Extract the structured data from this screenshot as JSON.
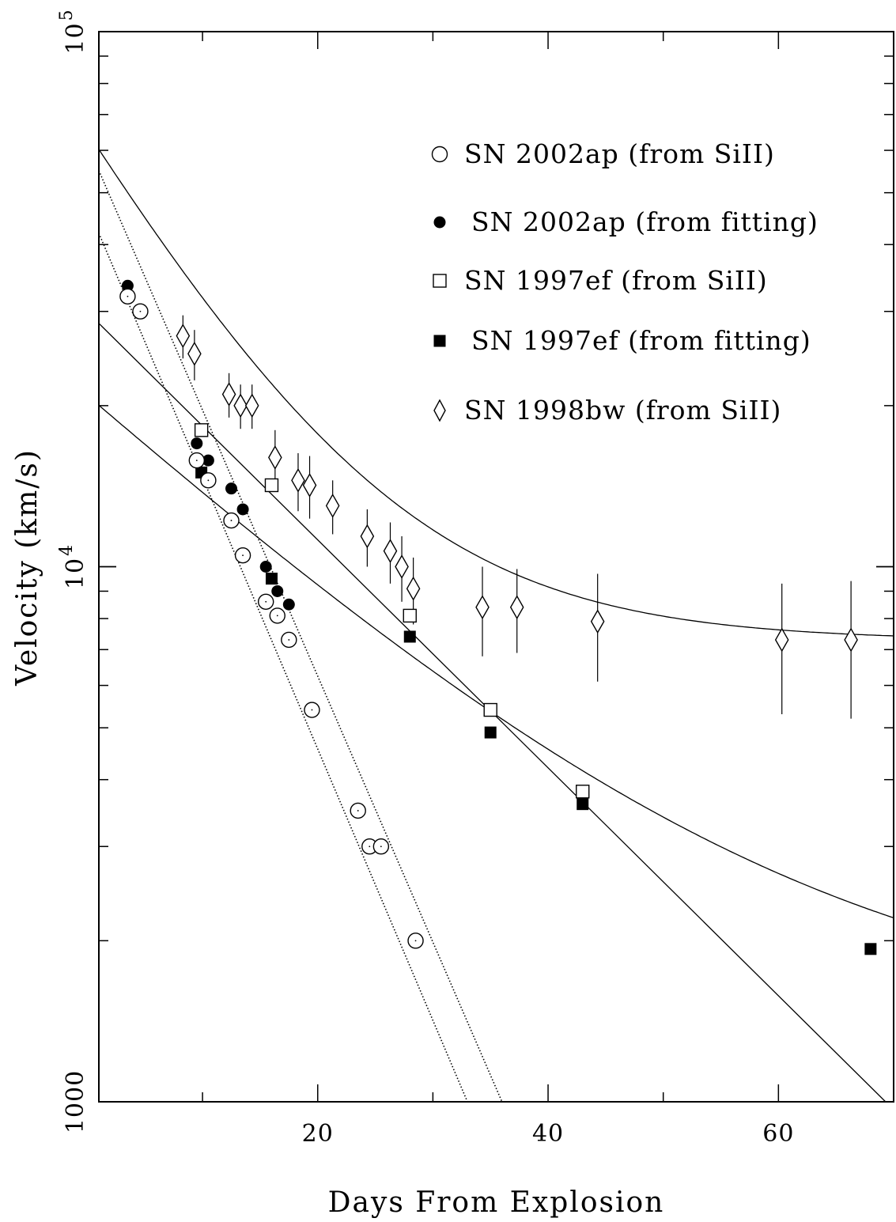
{
  "chart_data": {
    "type": "scatter",
    "title": "",
    "xlabel": "Days From Explosion",
    "ylabel": "Velocity (km/s)",
    "yscale": "log",
    "xlim": [
      1,
      70
    ],
    "ylim": [
      1000,
      100000
    ],
    "x_ticks": [
      20,
      40,
      60
    ],
    "x_tick_labels": [
      "20",
      "40",
      "60"
    ],
    "y_tick_labels": [
      {
        "value": 1000,
        "base": "1000",
        "exp": ""
      },
      {
        "value": 10000,
        "base": "10",
        "exp": "4"
      },
      {
        "value": 100000,
        "base": "10",
        "exp": "5"
      }
    ],
    "legend_position": "top-right",
    "series": [
      {
        "name": "SN 2002ap (from SiII)",
        "marker": "open-circle",
        "points": [
          [
            3.5,
            32000
          ],
          [
            4.6,
            30000
          ],
          [
            9.5,
            15800
          ],
          [
            10.5,
            14500
          ],
          [
            12.5,
            12200
          ],
          [
            13.5,
            10500
          ],
          [
            15.5,
            8600
          ],
          [
            16.5,
            8100
          ],
          [
            17.5,
            7300
          ],
          [
            19.5,
            5400
          ],
          [
            23.5,
            3500
          ],
          [
            24.5,
            3000
          ],
          [
            25.5,
            3000
          ],
          [
            28.5,
            2000
          ]
        ]
      },
      {
        "name": "SN 2002ap (from fitting)",
        "marker": "filled-circle",
        "points": [
          [
            3.5,
            33500
          ],
          [
            4.5,
            30000
          ],
          [
            9.5,
            17000
          ],
          [
            10.5,
            15800
          ],
          [
            12.5,
            14000
          ],
          [
            13.5,
            12800
          ],
          [
            15.5,
            10000
          ],
          [
            16.5,
            9000
          ],
          [
            17.5,
            8500
          ]
        ]
      },
      {
        "name": "SN 1997ef (from SiII)",
        "marker": "open-square",
        "points": [
          [
            9.9,
            18000
          ],
          [
            16,
            14200
          ],
          [
            28,
            8100
          ],
          [
            35,
            5400
          ],
          [
            43,
            3800
          ]
        ]
      },
      {
        "name": "SN 1997ef (from fitting)",
        "marker": "filled-square",
        "points": [
          [
            9.9,
            15000
          ],
          [
            16,
            9500
          ],
          [
            28,
            7400
          ],
          [
            35,
            4900
          ],
          [
            43,
            3600
          ],
          [
            68,
            1930
          ]
        ]
      },
      {
        "name": "SN 1998bw (from SiII)",
        "marker": "open-diamond",
        "points": [
          [
            8.3,
            27000,
            2500
          ],
          [
            9.3,
            25000,
            2700
          ],
          [
            12.3,
            21000,
            2000
          ],
          [
            13.3,
            20000,
            1900
          ],
          [
            14.3,
            20000,
            1900
          ],
          [
            16.3,
            16000,
            2000
          ],
          [
            18.3,
            14500,
            1800
          ],
          [
            19.3,
            14200,
            1900
          ],
          [
            21.3,
            13000,
            1500
          ],
          [
            24.3,
            11400,
            1400
          ],
          [
            26.3,
            10700,
            1400
          ],
          [
            27.3,
            10000,
            1400
          ],
          [
            28.3,
            9100,
            1300
          ],
          [
            34.3,
            8400,
            1600
          ],
          [
            37.3,
            8400,
            1500
          ],
          [
            44.3,
            7900,
            1800
          ],
          [
            60.3,
            7300,
            2000
          ],
          [
            66.3,
            7300,
            2100
          ]
        ]
      }
    ],
    "fits": [
      {
        "style": "dotted",
        "form": "exponential",
        "from": [
          1,
          42000
        ],
        "to": [
          33,
          1000
        ]
      },
      {
        "style": "dotted",
        "form": "exponential",
        "from": [
          1,
          55000
        ],
        "to": [
          36,
          1000
        ]
      },
      {
        "style": "solid",
        "form": "exponential",
        "from": [
          1,
          28500
        ],
        "to": [
          69.3,
          1000
        ]
      },
      {
        "style": "solid",
        "form": "exponential-plus-constant",
        "A": 57700,
        "k": 0.0855,
        "C": 7280
      },
      {
        "style": "solid",
        "form": "exponential-plus-constant",
        "A": 19500,
        "k": 0.0455,
        "C": 1400
      }
    ]
  }
}
